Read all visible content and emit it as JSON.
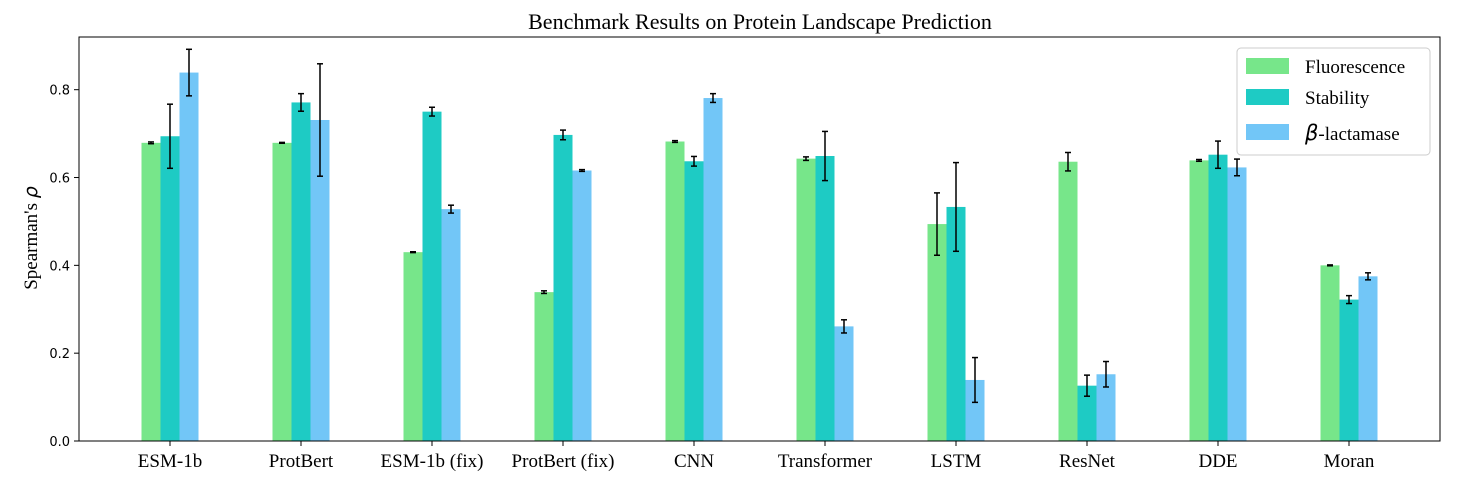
{
  "chart_data": {
    "type": "bar",
    "title": "Benchmark Results on Protein Landscape Prediction",
    "ylabel_text": "Spearman's ",
    "ylabel_symbol": "ρ",
    "xlabel": "",
    "ylim": [
      0,
      0.92
    ],
    "yticks": [
      0.0,
      0.2,
      0.4,
      0.6,
      0.8
    ],
    "ytick_labels": [
      "0.0",
      "0.2",
      "0.4",
      "0.6",
      "0.8"
    ],
    "grid": false,
    "legend_position": "top-right",
    "categories": [
      "ESM-1b",
      "ProtBert",
      "ESM-1b (fix)",
      "ProtBert (fix)",
      "CNN",
      "Transformer",
      "LSTM",
      "ResNet",
      "DDE",
      "Moran"
    ],
    "series": [
      {
        "name": "Fluorescence",
        "label_prefix": "Fluorescence",
        "label_symbol": "",
        "color": "#77e68a",
        "values": [
          0.679,
          0.679,
          0.43,
          0.339,
          0.682,
          0.643,
          0.494,
          0.636,
          0.639,
          0.4
        ],
        "errors": [
          0.002,
          0.001,
          0.001,
          0.003,
          0.002,
          0.004,
          0.071,
          0.021,
          0.002,
          0.001
        ]
      },
      {
        "name": "Stability",
        "label_prefix": "Stability",
        "label_symbol": "",
        "color": "#1ecbc4",
        "values": [
          0.694,
          0.771,
          0.75,
          0.697,
          0.637,
          0.649,
          0.533,
          0.126,
          0.652,
          0.322
        ],
        "errors": [
          0.073,
          0.02,
          0.01,
          0.011,
          0.011,
          0.056,
          0.101,
          0.024,
          0.031,
          0.009
        ]
      },
      {
        "name": "β-lactamase",
        "label_prefix": "-lactamase",
        "label_symbol": "β",
        "color": "#72c6f7",
        "values": [
          0.839,
          0.731,
          0.528,
          0.616,
          0.781,
          0.261,
          0.139,
          0.152,
          0.623,
          0.375
        ],
        "errors": [
          0.053,
          0.128,
          0.009,
          0.002,
          0.01,
          0.015,
          0.051,
          0.029,
          0.019,
          0.008
        ]
      }
    ]
  }
}
